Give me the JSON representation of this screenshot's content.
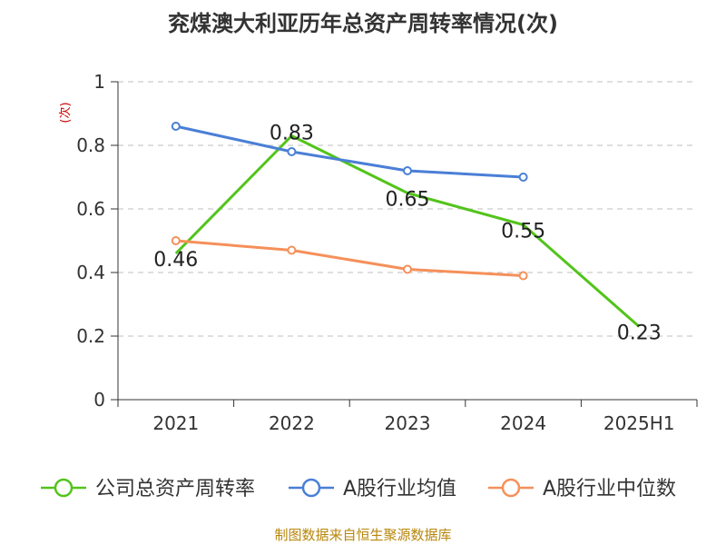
{
  "chart_data": {
    "type": "line",
    "title": "兖煤澳大利亚历年总资产周转率情况(次)",
    "ylabel": "(次)",
    "ylim": [
      0,
      1
    ],
    "yticks": [
      0,
      0.2,
      0.4,
      0.6,
      0.8,
      1
    ],
    "categories": [
      "2021",
      "2022",
      "2023",
      "2024",
      "2025H1"
    ],
    "grid": true,
    "legend_position": "bottom",
    "series": [
      {
        "name": "公司总资产周转率",
        "color": "#52c41a",
        "values": [
          0.46,
          0.83,
          0.65,
          0.55,
          0.23
        ],
        "labels": [
          "0.46",
          "0.83",
          "0.65",
          "0.55",
          "0.23"
        ],
        "show_markers": false,
        "show_labels": true
      },
      {
        "name": "A股行业均值",
        "color": "#4a7fd6",
        "values": [
          0.86,
          0.78,
          0.72,
          0.7,
          null
        ],
        "show_markers": true,
        "show_labels": false
      },
      {
        "name": "A股行业中位数",
        "color": "#f5905a",
        "values": [
          0.5,
          0.47,
          0.41,
          0.39,
          null
        ],
        "show_markers": true,
        "show_labels": false
      }
    ]
  },
  "footer": {
    "source": "制图数据来自恒生聚源数据库"
  }
}
